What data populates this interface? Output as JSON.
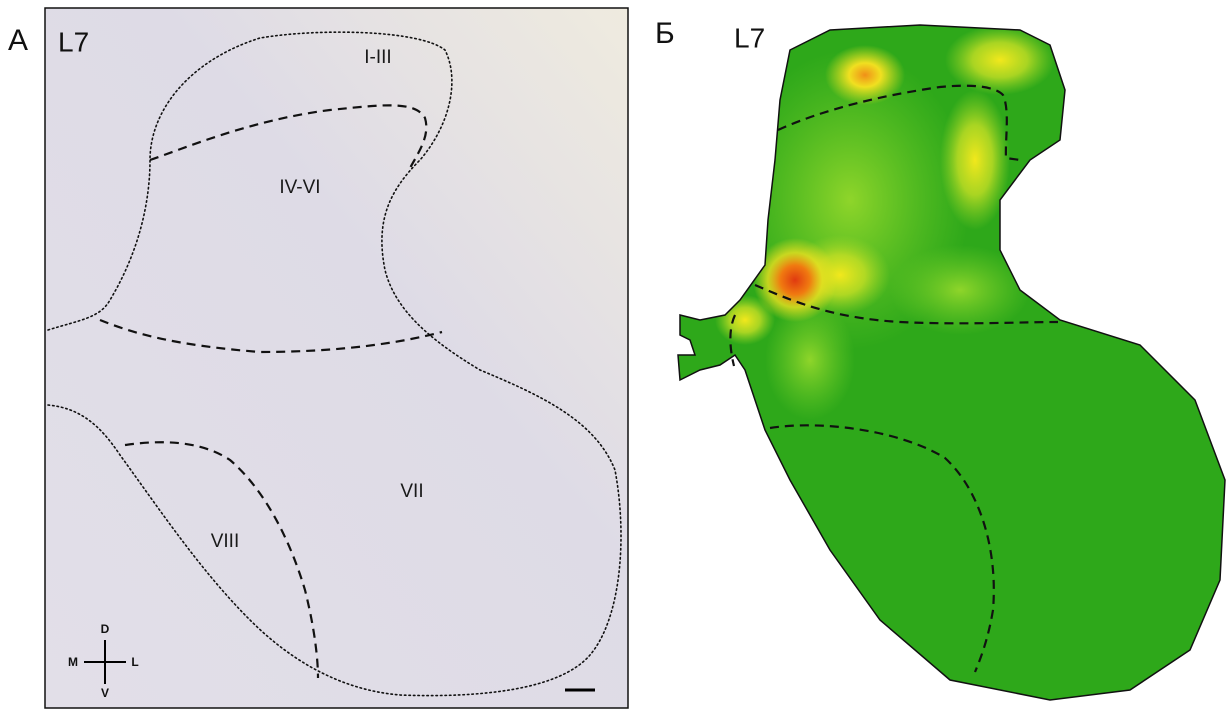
{
  "panel_a": {
    "letter": "А",
    "section": "L7",
    "regions": [
      "I-III",
      "IV-VI",
      "VII",
      "VIII"
    ],
    "compass": {
      "dorsal": "D",
      "ventral": "V",
      "medial": "M",
      "lateral": "L"
    }
  },
  "panel_b": {
    "letter": "Б",
    "section": "L7"
  }
}
